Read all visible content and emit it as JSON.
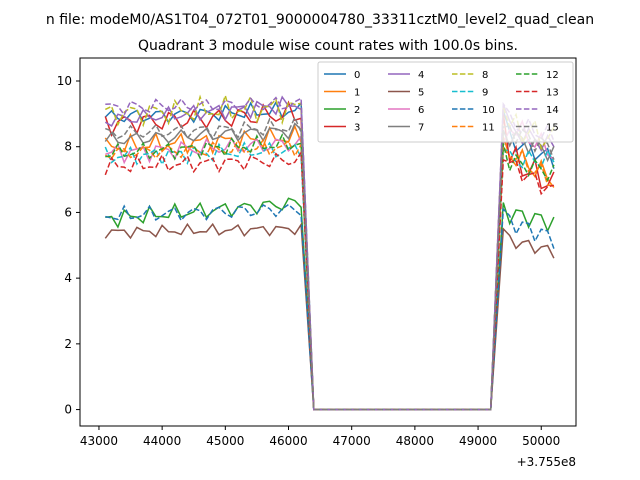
{
  "chart_data": {
    "type": "line",
    "suptitle": "n file: modeM0/AS1T04_072T01_9000004780_33311cztM0_level2_quad_clean",
    "title": "Quadrant 3 module wise count rates with 100.0s bins.",
    "xlabel": "",
    "ylabel": "",
    "x_offset_label": "+3.755e8",
    "xlim": [
      42700,
      50550
    ],
    "ylim": [
      -0.5,
      10.7
    ],
    "xticks": [
      43000,
      44000,
      45000,
      46000,
      47000,
      48000,
      49000,
      50000
    ],
    "xtick_labels": [
      "43000",
      "44000",
      "45000",
      "46000",
      "47000",
      "48000",
      "49000",
      "50000"
    ],
    "yticks": [
      0,
      2,
      4,
      6,
      8,
      10
    ],
    "ytick_labels": [
      "0",
      "2",
      "4",
      "6",
      "8",
      "10"
    ],
    "legend_position": "top-right",
    "legend_columns": 4,
    "segments": {
      "active_1": {
        "start": 43100,
        "end": 46200,
        "step": 100
      },
      "drop_end": 46400,
      "zero_start": 46400,
      "zero_end": 49200,
      "active_2": {
        "start": 49400,
        "end": 50200,
        "step": 100
      }
    },
    "series": [
      {
        "name": "0",
        "color": "#1f77b4",
        "style": "solid",
        "level1": 8.9,
        "rise": 9.1,
        "level2": 8.3,
        "end": 7.6,
        "amp": 0.3
      },
      {
        "name": "1",
        "color": "#ff7f0e",
        "style": "solid",
        "level1": 8.0,
        "rise": 8.3,
        "level2": 7.9,
        "end": 7.0,
        "amp": 0.35
      },
      {
        "name": "2",
        "color": "#2ca02c",
        "style": "solid",
        "level1": 5.8,
        "rise": 6.3,
        "level2": 6.0,
        "end": 5.7,
        "amp": 0.3
      },
      {
        "name": "3",
        "color": "#d62728",
        "style": "solid",
        "level1": 8.7,
        "rise": 9.0,
        "level2": 7.8,
        "end": 6.8,
        "amp": 0.45
      },
      {
        "name": "4",
        "color": "#9467bd",
        "style": "solid",
        "level1": 8.8,
        "rise": 9.3,
        "level2": 8.6,
        "end": 8.0,
        "amp": 0.3
      },
      {
        "name": "5",
        "color": "#8c564b",
        "style": "solid",
        "level1": 5.4,
        "rise": 5.5,
        "level2": 5.2,
        "end": 4.8,
        "amp": 0.2
      },
      {
        "name": "6",
        "color": "#e377c2",
        "style": "solid",
        "level1": 7.8,
        "rise": 8.1,
        "level2": 8.8,
        "end": 7.8,
        "amp": 0.35
      },
      {
        "name": "7",
        "color": "#7f7f7f",
        "style": "solid",
        "level1": 8.2,
        "rise": 8.5,
        "level2": 8.4,
        "end": 7.8,
        "amp": 0.3
      },
      {
        "name": "8",
        "color": "#bcbd22",
        "style": "dashed",
        "level1": 9.0,
        "rise": 9.2,
        "level2": 8.7,
        "end": 8.2,
        "amp": 0.45
      },
      {
        "name": "9",
        "color": "#17becf",
        "style": "dashed",
        "level1": 7.7,
        "rise": 7.9,
        "level2": 7.6,
        "end": 7.6,
        "amp": 0.3
      },
      {
        "name": "10",
        "color": "#1f77b4",
        "style": "dashed",
        "level1": 5.9,
        "rise": 6.1,
        "level2": 5.8,
        "end": 5.2,
        "amp": 0.3
      },
      {
        "name": "11",
        "color": "#ff7f0e",
        "style": "dashed",
        "level1": 7.8,
        "rise": 8.0,
        "level2": 8.0,
        "end": 6.9,
        "amp": 0.3
      },
      {
        "name": "12",
        "color": "#2ca02c",
        "style": "dashed",
        "level1": 7.8,
        "rise": 8.1,
        "level2": 7.6,
        "end": 7.2,
        "amp": 0.3
      },
      {
        "name": "13",
        "color": "#d62728",
        "style": "dashed",
        "level1": 7.4,
        "rise": 7.6,
        "level2": 7.6,
        "end": 6.6,
        "amp": 0.3
      },
      {
        "name": "14",
        "color": "#9467bd",
        "style": "dashed",
        "level1": 9.2,
        "rise": 9.3,
        "level2": 8.8,
        "end": 8.3,
        "amp": 0.3
      },
      {
        "name": "15",
        "color": "#7f7f7f",
        "style": "dashed",
        "level1": 8.4,
        "rise": 8.6,
        "level2": 8.6,
        "end": 7.9,
        "amp": 0.3
      }
    ]
  }
}
